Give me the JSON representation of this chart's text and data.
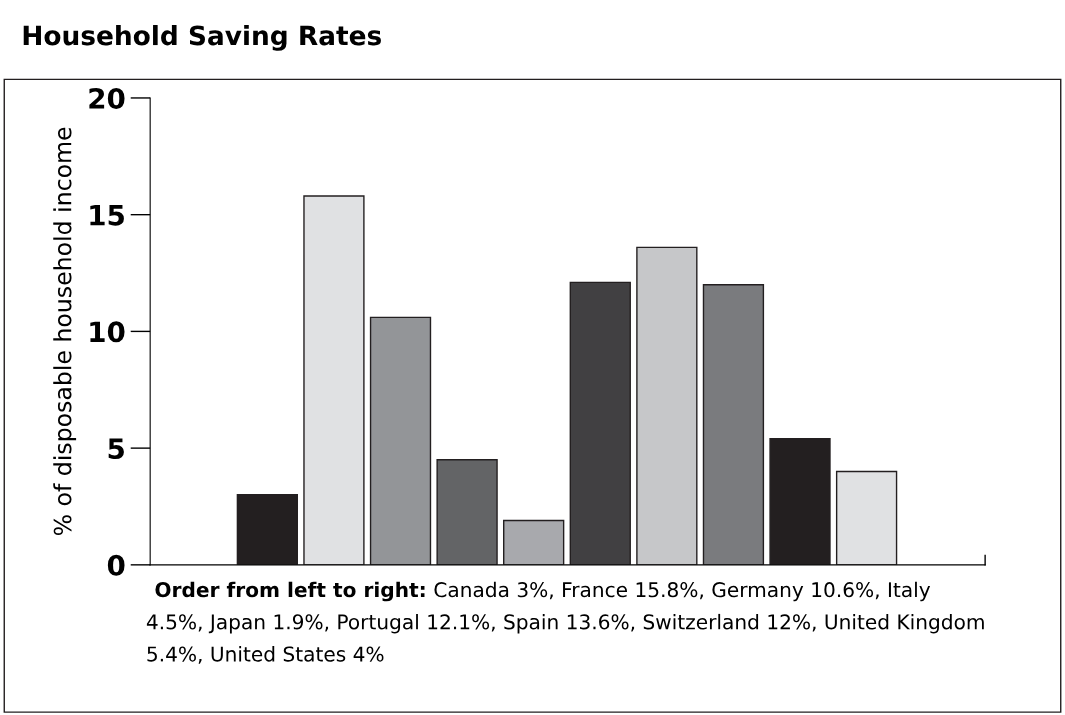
{
  "chart_data": {
    "type": "bar",
    "title": "Household Saving Rates",
    "ylabel": "% of disposable household income",
    "categories": [
      null,
      null,
      null,
      null,
      null,
      null,
      null,
      null,
      null,
      null
    ],
    "values": [
      3,
      15.8,
      10.6,
      4.5,
      1.9,
      12.1,
      13.6,
      12,
      5.4,
      4
    ],
    "colors": [
      "#231f20",
      "#e0e1e3",
      "#939598",
      "#636466",
      "#a8a9ad",
      "#414042",
      "#c6c7c9",
      "#7a7b7e",
      "#231f20",
      "#e0e1e3"
    ],
    "ylim": [
      0,
      20
    ],
    "yticks": [
      0,
      5,
      10,
      15,
      20
    ],
    "grid": false,
    "annotations": [
      "Order from left to right:",
      "Canada 3%, France 15.8%, Germany 10.6%, Italy 4.5%, Japan 1.9%, Portugal 12.1%, Spain 13.6%, Switzerland 12%, United Kingdom 5.4%, United States 4%"
    ]
  }
}
